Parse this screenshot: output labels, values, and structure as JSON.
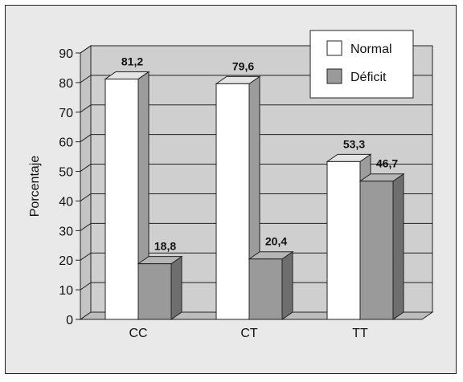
{
  "chart_data": {
    "type": "bar",
    "ylabel": "Porcentaje",
    "xlabel": "",
    "ylim": [
      0,
      90
    ],
    "yticks": [
      0,
      10,
      20,
      30,
      40,
      50,
      60,
      70,
      80,
      90
    ],
    "categories": [
      "CC",
      "CT",
      "TT"
    ],
    "series": [
      {
        "name": "Normal",
        "values": [
          81.2,
          79.6,
          53.3
        ],
        "labels": [
          "81,2",
          "79,6",
          "53,3"
        ],
        "color": "#ffffff"
      },
      {
        "name": "Déficit",
        "values": [
          18.8,
          20.4,
          46.7
        ],
        "labels": [
          "18,8",
          "20,4",
          "46,7"
        ],
        "color": "#9a9a9a"
      }
    ],
    "grid": true,
    "legend": "top-right",
    "style": "3d"
  }
}
